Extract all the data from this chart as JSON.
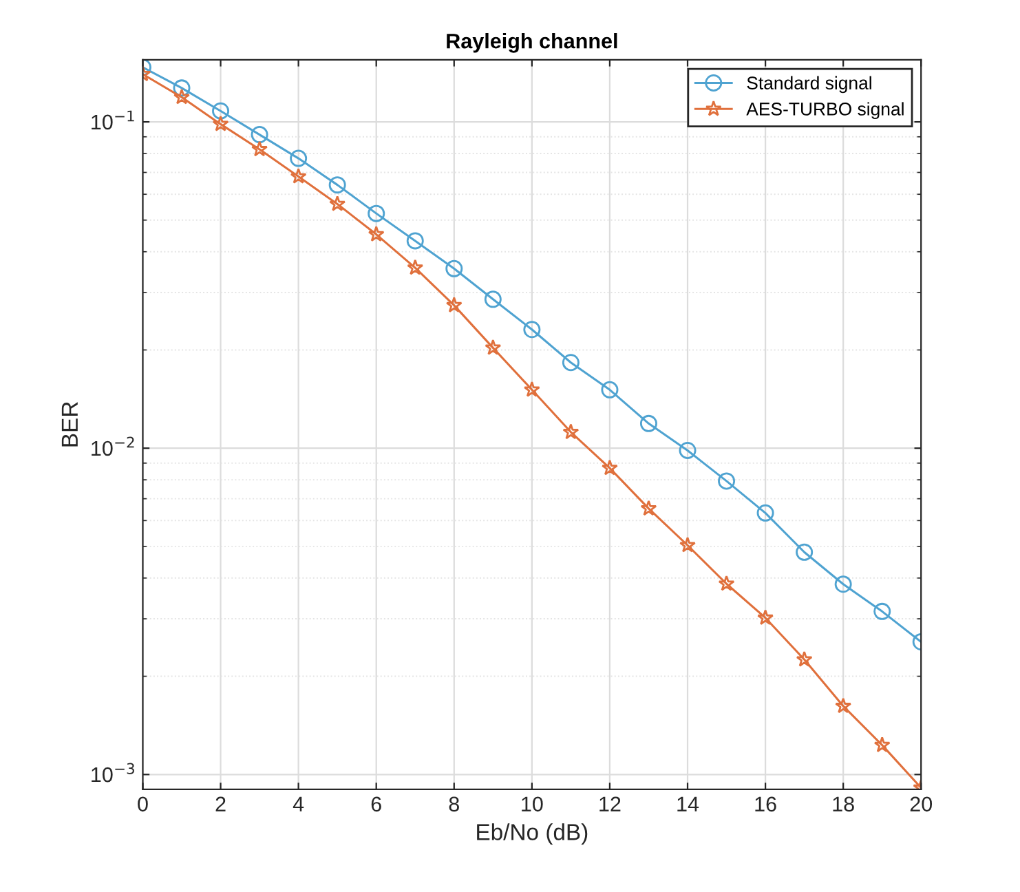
{
  "chart_data": {
    "type": "line",
    "title": "Rayleigh channel",
    "xlabel": "Eb/No (dB)",
    "ylabel": "BER",
    "x": [
      0,
      1,
      2,
      3,
      4,
      5,
      6,
      7,
      8,
      9,
      10,
      11,
      12,
      13,
      14,
      15,
      16,
      17,
      18,
      19,
      20
    ],
    "series": [
      {
        "name": "Standard signal",
        "color": "#4fa3d1",
        "marker": "circle",
        "values": [
          0.147,
          0.127,
          0.108,
          0.0914,
          0.0773,
          0.0641,
          0.0524,
          0.0432,
          0.0355,
          0.0286,
          0.0231,
          0.0183,
          0.0151,
          0.0119,
          0.00984,
          0.00793,
          0.00633,
          0.0048,
          0.00383,
          0.00316,
          0.00255
        ]
      },
      {
        "name": "AES-TURBO signal",
        "color": "#e0703c",
        "marker": "star",
        "values": [
          0.14,
          0.119,
          0.0984,
          0.0824,
          0.068,
          0.056,
          0.0452,
          0.0357,
          0.0274,
          0.0203,
          0.0151,
          0.0112,
          0.00869,
          0.00653,
          0.00504,
          0.00384,
          0.00302,
          0.00225,
          0.00162,
          0.00123,
          0.00091
        ]
      }
    ],
    "log": "y",
    "xlim": [
      0,
      20
    ],
    "xticks": [
      0,
      2,
      4,
      6,
      8,
      10,
      12,
      14,
      16,
      18,
      20
    ],
    "ylim": [
      0.0009,
      0.155
    ],
    "yticks": [
      {
        "value": 0.001,
        "label": "10$^{−3}$"
      },
      {
        "value": 0.01,
        "label": "10$^{−2}$"
      },
      {
        "value": 0.1,
        "label": "10$^{−1}$"
      }
    ],
    "grid": true,
    "legend": "top right",
    "line_style": "solid"
  }
}
